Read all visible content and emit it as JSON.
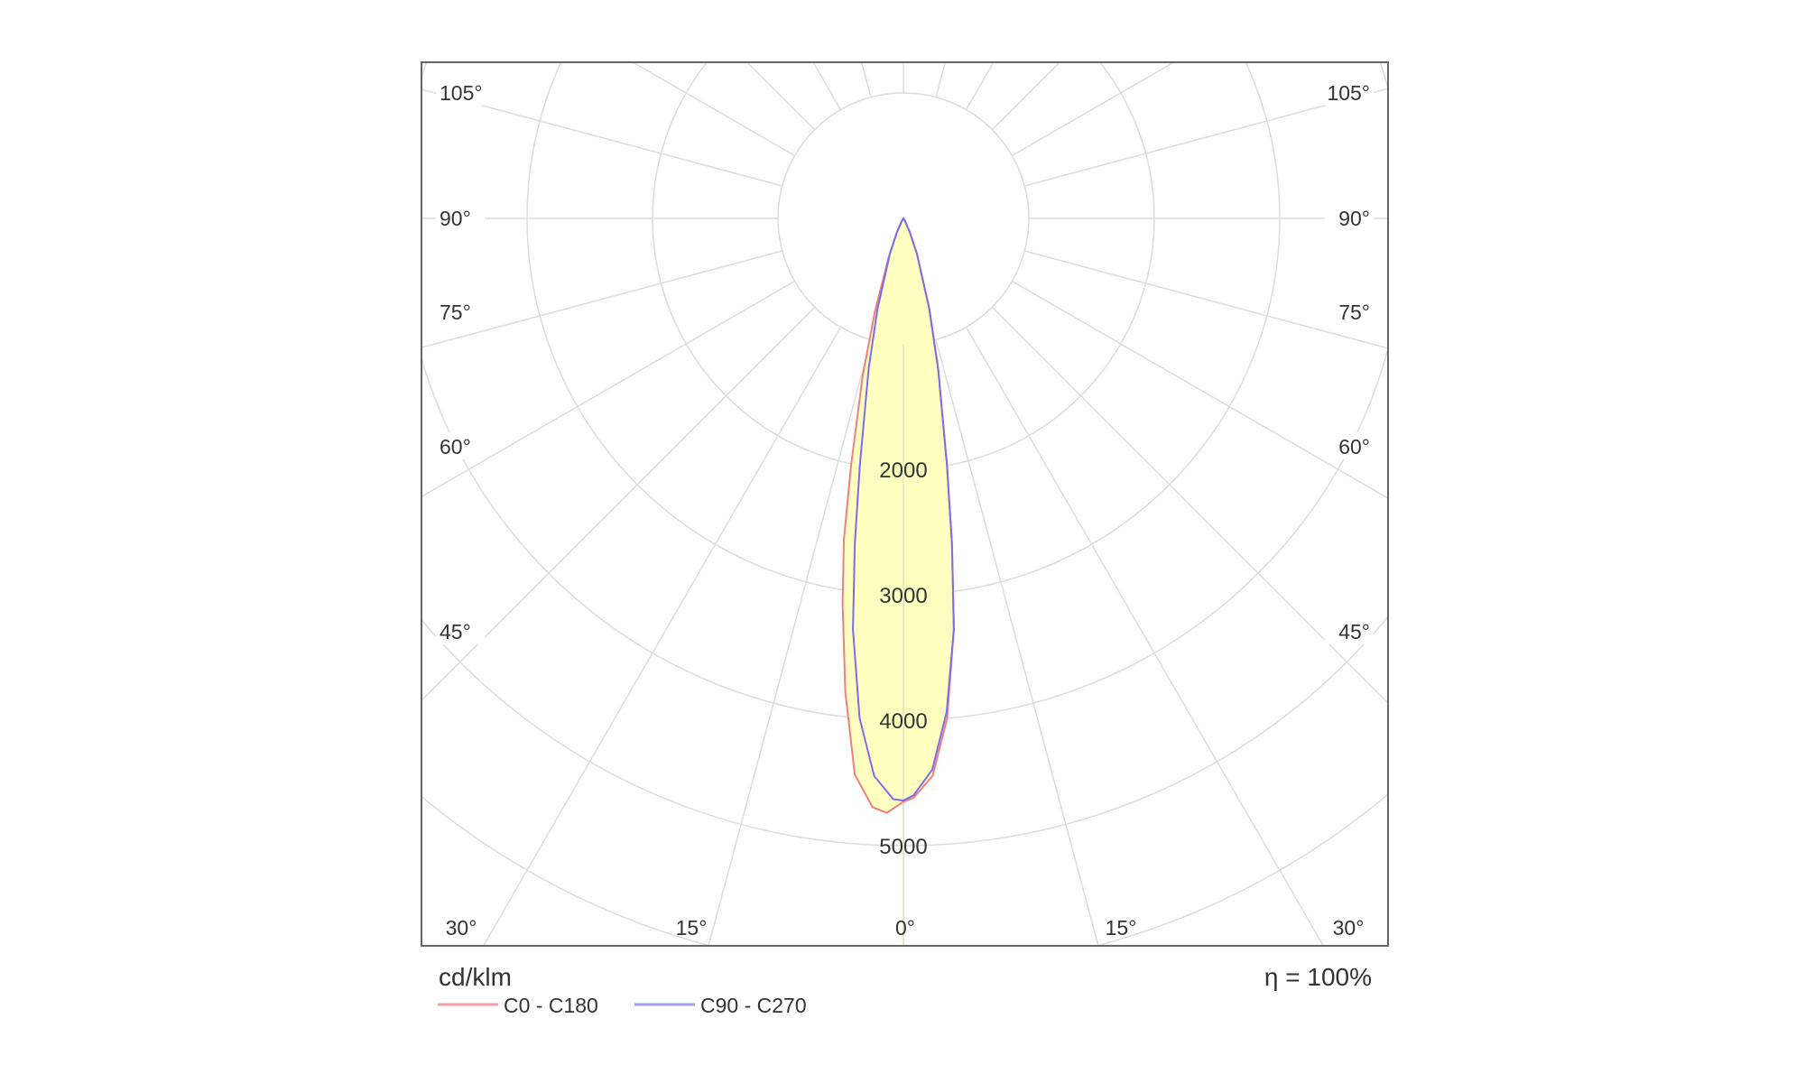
{
  "chart_data": {
    "type": "polar",
    "unit_label": "cd/klm",
    "efficiency_label": "η = 100%",
    "radial_ticks": [
      1000,
      2000,
      3000,
      4000,
      5000
    ],
    "radial_tick_labels": [
      "2000",
      "3000",
      "4000",
      "5000"
    ],
    "angle_tick_labels": {
      "left": [
        "105°",
        "90°",
        "75°",
        "60°",
        "45°"
      ],
      "right": [
        "105°",
        "90°",
        "75°",
        "60°",
        "45°"
      ],
      "bottom": [
        "30°",
        "15°",
        "0°",
        "15°",
        "30°"
      ]
    },
    "grid": true,
    "legend_position": "bottom-left",
    "series": [
      {
        "name": "C0 - C180",
        "color": "#f08080",
        "angles": [
          -30,
          -25,
          -21,
          -17,
          -14.5,
          -12,
          -10.5,
          -9,
          -7,
          -5,
          -3,
          -1.6,
          0,
          1,
          3,
          5,
          7,
          8.5,
          10,
          13,
          16,
          21,
          25,
          30
        ],
        "values": [
          30,
          130,
          320,
          780,
          1300,
          2000,
          2600,
          3100,
          3800,
          4450,
          4700,
          4740,
          4650,
          4620,
          4450,
          4000,
          3300,
          2620,
          2000,
          1230,
          750,
          300,
          120,
          30
        ]
      },
      {
        "name": "C90 - C270",
        "color": "#7b6cf0",
        "angles": [
          -30,
          -25,
          -21,
          -16,
          -13,
          -10,
          -8.5,
          -7,
          -5,
          -3,
          -1,
          0,
          1,
          3,
          5,
          7,
          8.5,
          10,
          13,
          16,
          21,
          25,
          30
        ],
        "values": [
          30,
          120,
          300,
          750,
          1230,
          2000,
          2620,
          3300,
          4000,
          4450,
          4630,
          4640,
          4600,
          4400,
          3950,
          3300,
          2620,
          2000,
          1230,
          750,
          300,
          120,
          30
        ]
      }
    ]
  },
  "colors": {
    "fill": "#ffffc0",
    "grid": "#dcdcdc",
    "frame": "#666666"
  }
}
